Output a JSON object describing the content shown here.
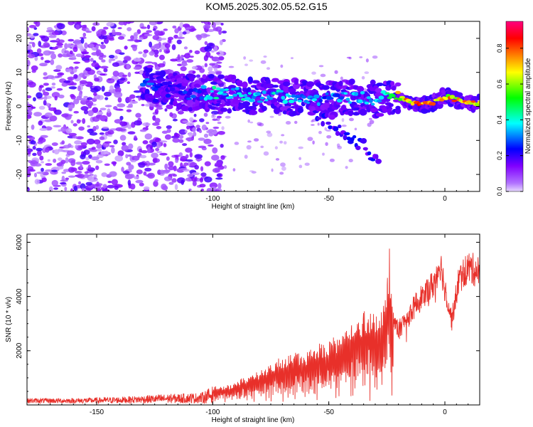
{
  "title": "KOM5.2025.302.05.52.G15",
  "chart_data": [
    {
      "type": "heatmap",
      "xlabel": "Height of straight line (km)",
      "ylabel": "Frequency (Hz)",
      "xlim": [
        -180,
        15
      ],
      "ylim": [
        -25,
        25
      ],
      "x_ticks": [
        -150,
        -100,
        -50,
        0
      ],
      "y_ticks": [
        -20,
        -10,
        0,
        10,
        20
      ],
      "colorbar": {
        "label": "Normalized spectral amplitude",
        "range": [
          0,
          0.95
        ],
        "ticks": [
          0.0,
          0.2,
          0.4,
          0.6,
          0.8
        ],
        "colors": [
          "#e6d8ff",
          "#8000ff",
          "#0000ff",
          "#00ffff",
          "#00ff00",
          "#ffff00",
          "#ff8000",
          "#ff0000",
          "#ff0080"
        ]
      },
      "ridge": {
        "x": [
          -128,
          -120,
          -110,
          -100,
          -90,
          -80,
          -70,
          -60,
          -50,
          -40,
          -30,
          -24,
          -20,
          -15,
          -10,
          -5,
          0,
          5,
          10,
          15
        ],
        "y": [
          7,
          5,
          4,
          4,
          3.5,
          3,
          3,
          2.5,
          2,
          3,
          2,
          3,
          2.5,
          1.5,
          0.5,
          1,
          3,
          2,
          1,
          1
        ],
        "amplitude": [
          0.35,
          0.25,
          0.3,
          0.45,
          0.45,
          0.4,
          0.45,
          0.4,
          0.35,
          0.4,
          0.35,
          0.65,
          0.75,
          0.9,
          0.9,
          0.85,
          0.8,
          0.85,
          0.9,
          0.9
        ]
      }
    },
    {
      "type": "line",
      "xlabel": "Height of straight line (km)",
      "ylabel": "SNR (10 * v/v)",
      "xlim": [
        -180,
        15
      ],
      "ylim": [
        0,
        6300
      ],
      "x_ticks": [
        -150,
        -100,
        -50,
        0
      ],
      "y_ticks": [
        2000,
        4000,
        6000
      ],
      "color": "#e8302a",
      "envelope": {
        "x": [
          -180,
          -160,
          -140,
          -120,
          -105,
          -100,
          -95,
          -90,
          -85,
          -80,
          -75,
          -70,
          -65,
          -60,
          -55,
          -50,
          -45,
          -40,
          -35,
          -30,
          -27,
          -24,
          -22,
          -20,
          -15,
          -10,
          -5,
          -2,
          0,
          3,
          6,
          10,
          15
        ],
        "y": [
          250,
          250,
          300,
          400,
          450,
          700,
          700,
          900,
          1100,
          1300,
          1600,
          1800,
          2000,
          2000,
          2300,
          2400,
          2800,
          3200,
          3700,
          3500,
          3600,
          6200,
          3500,
          3100,
          3800,
          4500,
          5000,
          5900,
          4900,
          3500,
          5200,
          5700,
          5500
        ]
      }
    }
  ]
}
